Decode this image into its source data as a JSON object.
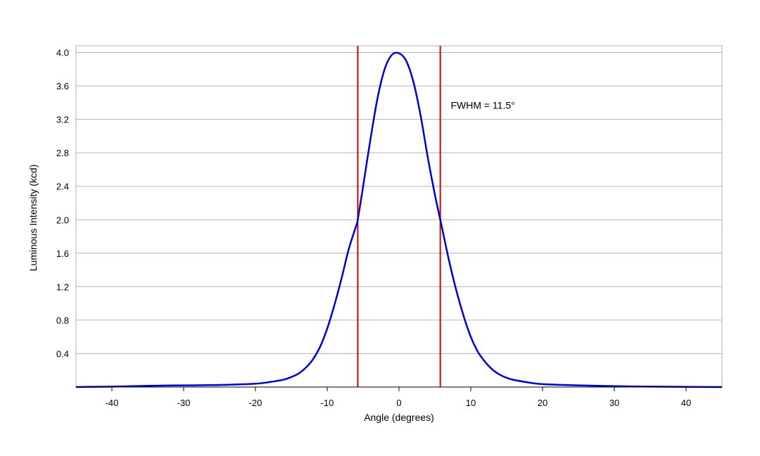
{
  "chart_data": {
    "type": "line",
    "title": "",
    "xlabel": "Angle (degrees)",
    "ylabel": "Luminous Intensity (kcd)",
    "xlim": [
      -45,
      45
    ],
    "ylim": [
      0,
      4.08
    ],
    "x_ticks": [
      -40,
      -30,
      -20,
      -10,
      0,
      10,
      20,
      30,
      40
    ],
    "y_ticks": [
      0.4,
      0.8,
      1.2,
      1.6,
      2.0,
      2.4,
      2.8,
      3.2,
      3.6,
      4.0
    ],
    "x_tick_labels": [
      "-40",
      "-30",
      "-20",
      "-10",
      "0",
      "10",
      "20",
      "30",
      "40"
    ],
    "y_tick_labels": [
      "0.4",
      "0.8",
      "1.2",
      "1.6",
      "2.0",
      "2.4",
      "2.8",
      "3.2",
      "3.6",
      "4.0"
    ],
    "grid": true,
    "series": [
      {
        "color": "#0000cc",
        "x": [
          -45,
          -40,
          -35,
          -30,
          -25,
          -20,
          -18,
          -16,
          -15,
          -14,
          -13,
          -12,
          -11,
          -10,
          -9,
          -8,
          -7,
          -6,
          -5.75,
          -5,
          -4,
          -3,
          -2,
          -1,
          0,
          1,
          2,
          3,
          4,
          5,
          5.75,
          6,
          7,
          8,
          9,
          10,
          11,
          12,
          13,
          14,
          15,
          16,
          18,
          20,
          25,
          30,
          35,
          40,
          45
        ],
        "y": [
          0.0,
          0.005,
          0.015,
          0.02,
          0.025,
          0.04,
          0.06,
          0.09,
          0.12,
          0.16,
          0.23,
          0.33,
          0.48,
          0.7,
          0.98,
          1.3,
          1.65,
          1.92,
          2.0,
          2.4,
          2.95,
          3.45,
          3.8,
          3.97,
          3.99,
          3.9,
          3.65,
          3.25,
          2.75,
          2.3,
          2.0,
          1.9,
          1.5,
          1.15,
          0.85,
          0.6,
          0.42,
          0.3,
          0.21,
          0.15,
          0.11,
          0.085,
          0.055,
          0.035,
          0.02,
          0.01,
          0.005,
          0.002,
          0.0
        ]
      }
    ],
    "vertical_lines": [
      {
        "x": -5.75,
        "color": "#dd0000"
      },
      {
        "x": 5.75,
        "color": "#dd0000"
      }
    ],
    "annotations": [
      {
        "text": "FWHM = 11.5°",
        "x": 7.2,
        "y": 3.37
      }
    ],
    "colors": {
      "grid": "#b3b3b3",
      "frame": "#b3b3b3",
      "axis": "#000000"
    }
  }
}
